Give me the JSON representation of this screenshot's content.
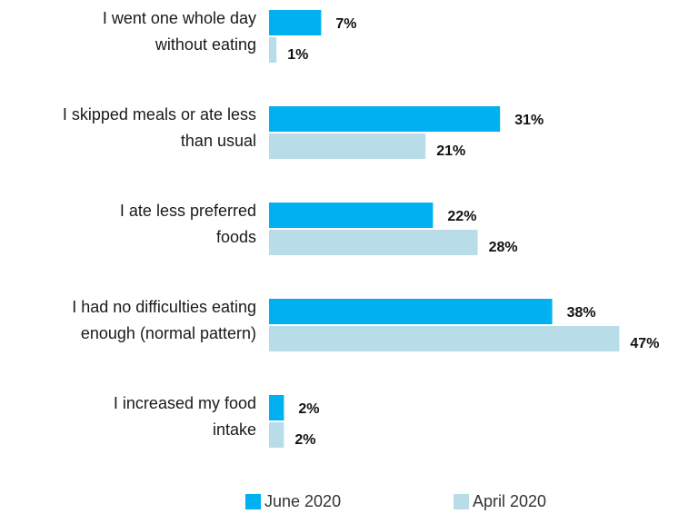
{
  "chart_data": {
    "type": "bar",
    "orientation": "horizontal",
    "categories": [
      [
        "I went one whole day",
        "without eating"
      ],
      [
        "I skipped meals or ate less",
        "than usual"
      ],
      [
        "I ate less preferred",
        "foods"
      ],
      [
        "I had no difficulties eating",
        "enough (normal pattern)"
      ],
      [
        "I increased my food",
        "intake"
      ]
    ],
    "series": [
      {
        "name": "June 2020",
        "color": "#00b0f0",
        "values": [
          7,
          31,
          22,
          38,
          2
        ]
      },
      {
        "name": "April 2020",
        "color": "#b8dde9",
        "values": [
          1,
          21,
          28,
          47,
          2
        ]
      }
    ],
    "value_suffix": "%",
    "xlim": [
      0,
      50
    ],
    "grid": false,
    "legend_position": "bottom"
  }
}
